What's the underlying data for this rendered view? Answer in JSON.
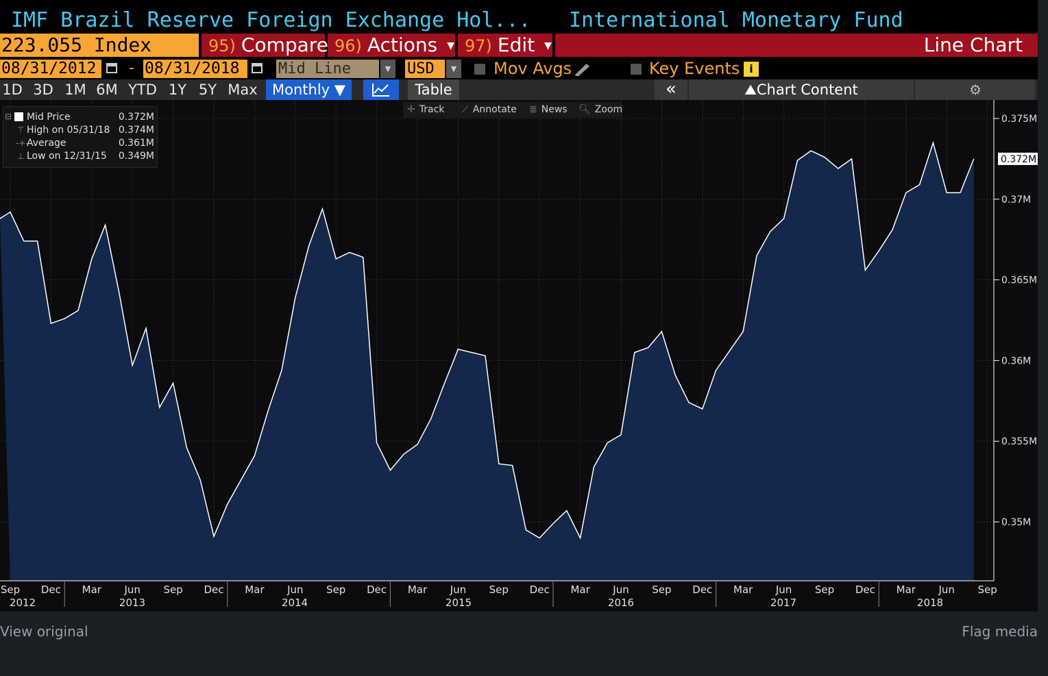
{
  "header": {
    "title": "IMF Brazil Reserve Foreign Exchange Hol...",
    "source": "International Monetary Fund"
  },
  "toolbar": {
    "ticker": "223.055 Index",
    "compare_num": "95)",
    "compare_label": "Compare",
    "actions_num": "96)",
    "actions_label": "Actions",
    "edit_num": "97)",
    "edit_label": "Edit",
    "chart_type": "Line Chart"
  },
  "settings": {
    "start_date": "08/31/2012",
    "separator": "-",
    "end_date": "08/31/2018",
    "price_type": "Mid Line",
    "currency": "USD",
    "mov_avgs": "Mov Avgs",
    "key_events": "Key Events"
  },
  "periods": [
    "1D",
    "3D",
    "1M",
    "6M",
    "YTD",
    "1Y",
    "5Y",
    "Max"
  ],
  "frequency": "Monthly",
  "table_label": "Table",
  "chart_content_label": "Chart Content",
  "legend": {
    "mid_price_label": "Mid Price",
    "mid_price_value": "0.372M",
    "high_label": "High on 05/31/18",
    "high_value": "0.374M",
    "average_label": "Average",
    "average_value": "0.361M",
    "low_label": "Low on 12/31/15",
    "low_value": "0.349M"
  },
  "tools": {
    "track": "Track",
    "annotate": "Annotate",
    "news": "News",
    "zoom": "Zoom"
  },
  "colors": {
    "accent_orange": "#f7a535",
    "title_cyan": "#46c8f0",
    "bar_red": "#a0101e",
    "area_fill": "#13284a",
    "line": "#ffffff"
  },
  "chart_data": {
    "type": "area",
    "y_unit": "M",
    "ylim": [
      0.346,
      0.3758
    ],
    "y_ticks": [
      0.35,
      0.355,
      0.36,
      0.365,
      0.37,
      0.375
    ],
    "y_tick_labels": [
      "0.35M",
      "0.355M",
      "0.36M",
      "0.365M",
      "0.37M",
      "0.375M"
    ],
    "last_value_label": "0.372M",
    "x_month_labels": [
      "Sep",
      "Dec",
      "Mar",
      "Jun",
      "Sep",
      "Dec",
      "Mar",
      "Jun",
      "Sep",
      "Dec",
      "Mar",
      "Jun",
      "Sep",
      "Dec",
      "Mar",
      "Jun",
      "Sep",
      "Dec",
      "Mar",
      "Jun",
      "Sep",
      "Dec",
      "Mar",
      "Jun",
      "Sep"
    ],
    "x_year_labels": [
      "2012",
      "2013",
      "2014",
      "2015",
      "2016",
      "2017",
      "2018"
    ],
    "start": "2012-08",
    "grid": true,
    "values": [
      0.3692,
      0.3674,
      0.3674,
      0.3623,
      0.3626,
      0.3631,
      0.3663,
      0.3684,
      0.3643,
      0.3597,
      0.362,
      0.3571,
      0.3586,
      0.3546,
      0.3526,
      0.3491,
      0.3511,
      0.3526,
      0.3541,
      0.3569,
      0.3594,
      0.3639,
      0.3671,
      0.3694,
      0.3663,
      0.3667,
      0.3664,
      0.3549,
      0.3532,
      0.3542,
      0.3548,
      0.3564,
      0.3586,
      0.3607,
      0.3605,
      0.3603,
      0.3536,
      0.3535,
      0.3495,
      0.349,
      0.3499,
      0.3507,
      0.349,
      0.3534,
      0.3549,
      0.3554,
      0.3605,
      0.3608,
      0.3618,
      0.3591,
      0.3574,
      0.357,
      0.3594,
      0.3606,
      0.3618,
      0.3665,
      0.368,
      0.3688,
      0.3724,
      0.373,
      0.3726,
      0.3719,
      0.3725,
      0.3656,
      0.3668,
      0.3681,
      0.3704,
      0.3709,
      0.3735,
      0.3704,
      0.3704,
      0.3725
    ]
  }
}
